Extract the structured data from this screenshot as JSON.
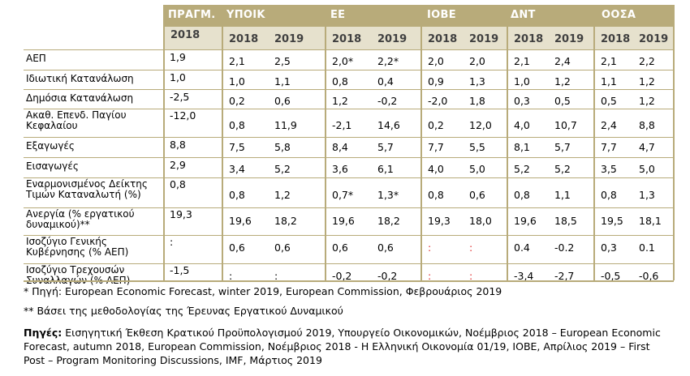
{
  "header": {
    "groups": [
      "ΠΡΑΓΜ.",
      "ΥΠΟΙΚ",
      "ΕΕ",
      "ΙΟΒΕ",
      "ΔΝΤ",
      "ΟΟΣΑ"
    ],
    "years": [
      "2018",
      "2018",
      "2019",
      "2018",
      "2019",
      "2018",
      "2019",
      "2018",
      "2019",
      "2018",
      "2019"
    ]
  },
  "rows": [
    {
      "label": [
        "ΑΕΠ"
      ],
      "values": [
        "1,9",
        "2,1",
        "2,5",
        "2,0*",
        "2,2*",
        "2,0",
        "2,0",
        "2,1",
        "2,4",
        "2,1",
        "2,2"
      ]
    },
    {
      "label": [
        "Ιδιωτική Κατανάλωση"
      ],
      "values": [
        "1,0",
        "1,0",
        "1,1",
        "0,8",
        "0,4",
        "0,9",
        "1,3",
        "1,0",
        "1,2",
        "1,1",
        "1,2"
      ]
    },
    {
      "label": [
        "Δημόσια Κατανάλωση"
      ],
      "values": [
        "-2,5",
        "0,2",
        "0,6",
        "1,2",
        "-0,2",
        "-2,0",
        "1,8",
        "0,3",
        "0,5",
        "0,5",
        "1,2"
      ]
    },
    {
      "label": [
        "Ακαθ. Επενδ. Παγίου",
        "Κεφαλαίου"
      ],
      "values": [
        "-12,0",
        "0,8",
        "11,9",
        "-2,1",
        "14,6",
        "0,2",
        "12,0",
        "4,0",
        "10,7",
        "2,4",
        "8,8"
      ]
    },
    {
      "label": [
        "Εξαγωγές"
      ],
      "values": [
        "8,8",
        "7,5",
        "5,8",
        "8,4",
        "5,7",
        "7,7",
        "5,5",
        "8,1",
        "5,7",
        "7,7",
        "4,7"
      ]
    },
    {
      "label": [
        "Εισαγωγές"
      ],
      "values": [
        "2,9",
        "3,4",
        "5,2",
        "3,6",
        "6,1",
        "4,0",
        "5,0",
        "5,2",
        "5,2",
        "3,5",
        "5,0"
      ]
    },
    {
      "label": [
        "Εναρμονισμένος Δείκτης",
        "Τιμών Καταναλωτή (%)"
      ],
      "values": [
        "0,8",
        "0,8",
        "1,2",
        "0,7*",
        "1,3*",
        "0,8",
        "0,6",
        "0,8",
        "1,1",
        "0,8",
        "1,3"
      ]
    },
    {
      "label": [
        "Ανεργία (% εργατικού",
        "δυναμικού)**"
      ],
      "values": [
        "19,3",
        "19,6",
        "18,2",
        "19,6",
        "18,2",
        "19,3",
        "18,0",
        "19,6",
        "18,5",
        "19,5",
        "18,1"
      ]
    },
    {
      "label": [
        "Ισοζύγιο Γενικής",
        "Κυβέρνησης (% ΑΕΠ)"
      ],
      "values": [
        ":",
        "0,6",
        "0,6",
        "0,6",
        "0,6",
        ":",
        ":",
        "0.4",
        "-0.2",
        "0,3",
        "0.1"
      ]
    },
    {
      "label": [
        "Ισοζύγιο Τρεχουσών",
        "Συναλλαγών (% ΑΕΠ)"
      ],
      "values": [
        "-1,5",
        ":",
        ":",
        "-0,2",
        "-0,2",
        ":",
        ":",
        "-3,4",
        "-2,7",
        "-0,5",
        "-0,6"
      ]
    }
  ],
  "notes": {
    "note1": "* Πηγή: European Economic Forecast, winter 2019, European Commission, Φεβρουάριος 2019",
    "note2": "** Βάσει της μεθοδολογίας της Έρευνας Εργατικού Δυναμικού",
    "sources_label": "Πηγές:",
    "sources_text": " Εισηγητική Έκθεση Κρατικού Προϋπολογισμού 2019, Υπουργείο Οικονομικών, Νοέμβριος 2018  – European Economic Forecast, autumn 2018, European Commission, Νοέμβριος 2018 - Η Ελληνική Οικονομία 01/19, ΙΟΒΕ, Απρίλιος 2019 – First Post – Program Monitoring Discussions, IMF, Μάρτιος 2019"
  },
  "colors": {
    "header_bg": "#b8ab7a",
    "subheader_bg": "#e6e1cd",
    "grid": "#b8ab7a",
    "highlight_red": "#e03030"
  }
}
